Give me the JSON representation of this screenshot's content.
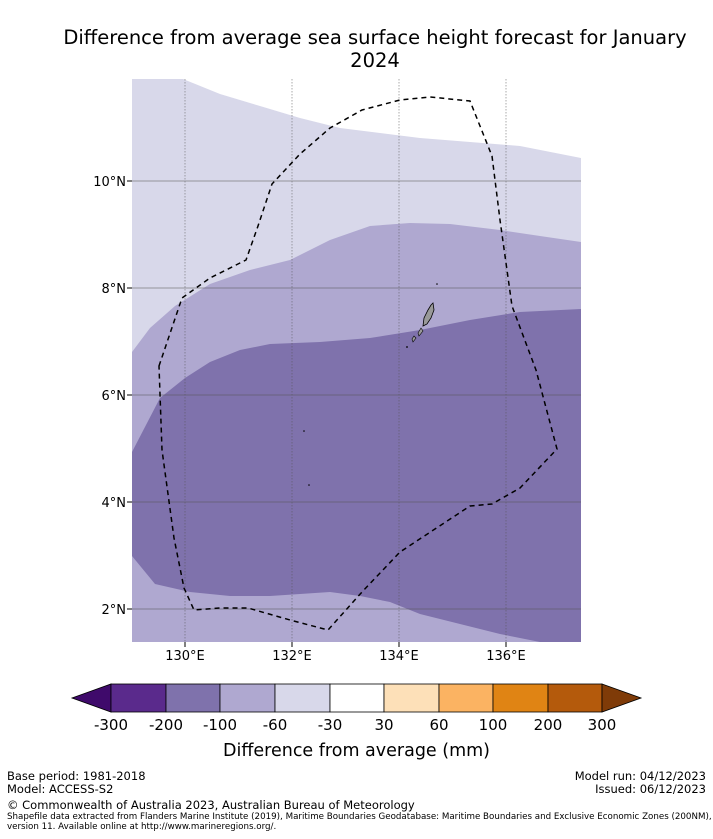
{
  "title": "Difference from average sea surface height forecast for January 2024",
  "map": {
    "x_ticks": [
      "130°E",
      "132°E",
      "134°E",
      "136°E"
    ],
    "y_ticks": [
      "10°N",
      "8°N",
      "6°N",
      "4°N",
      "2°N"
    ]
  },
  "colorbar": {
    "title": "Difference from average (mm)",
    "tick_labels": [
      "-300",
      "-200",
      "-100",
      "-60",
      "-30",
      "30",
      "60",
      "100",
      "200",
      "300"
    ],
    "colors": [
      "#3f0a6b",
      "#5a2a8c",
      "#7f72ac",
      "#afa8d0",
      "#d8d8ea",
      "#ffffff",
      "#fde0b8",
      "#fbb362",
      "#e08414",
      "#b45a0c",
      "#7f3b08"
    ]
  },
  "footer": {
    "base_period": "Base period: 1981-2018",
    "model": "Model: ACCESS-S2",
    "model_run": "Model run: 04/12/2023",
    "issued": "Issued: 06/12/2023",
    "copyright": "© Commonwealth of Australia 2023, Australian Bureau of Meteorology",
    "shapefile_note": "Shapefile data extracted from Flanders Marine Institute (2019), Maritime Boundaries Geodatabase: Maritime Boundaries and Exclusive Economic Zones (200NM), version 11. Available online at http://www.marineregions.org/."
  }
}
